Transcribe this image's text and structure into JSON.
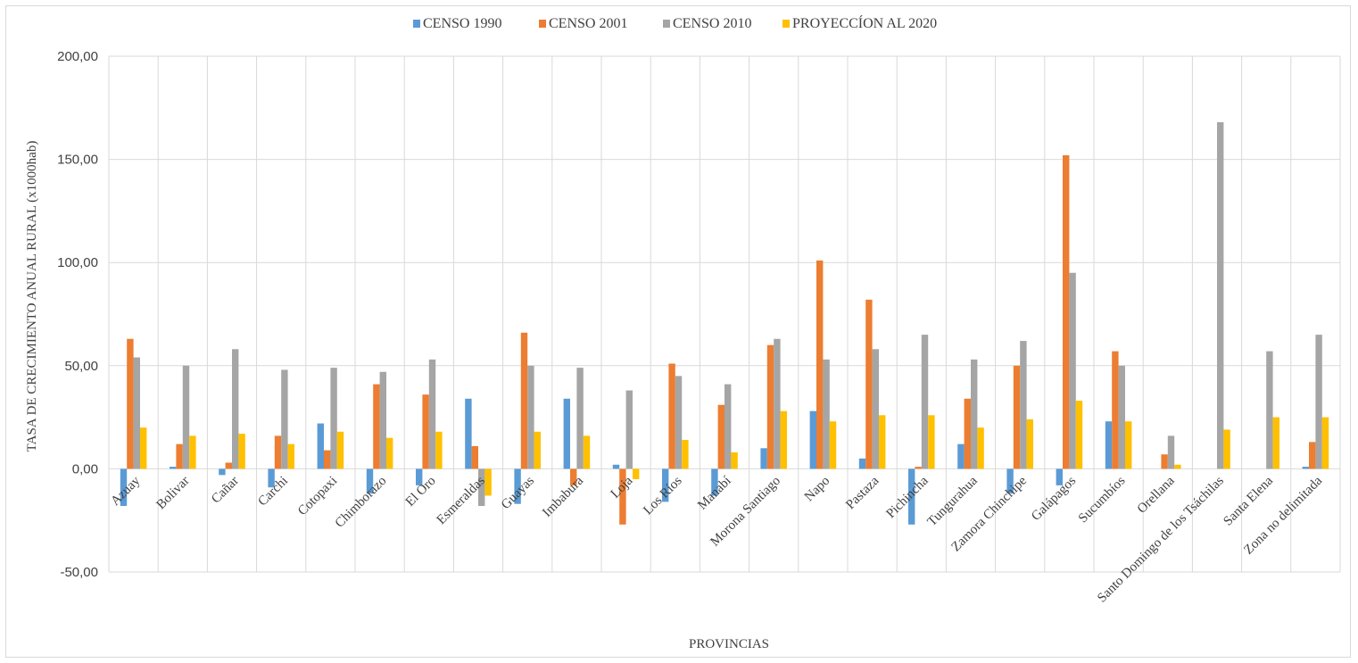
{
  "chart_data": {
    "type": "bar",
    "title": "",
    "xlabel": "PROVINCIAS",
    "ylabel": "TASA DE CRECIMIENTO ANUAL RURAL  (x1000hab)",
    "ylim": [
      -50,
      200
    ],
    "yticks": [
      "200,00",
      "150,00",
      "100,00",
      "50,00",
      "0,00",
      "-50,00"
    ],
    "ytick_values": [
      200,
      150,
      100,
      50,
      0,
      -50
    ],
    "grid": true,
    "legend_position": "top",
    "categories": [
      "Azuay",
      "Bolivar",
      "Cañar",
      "Carchi",
      "Cotopaxi",
      "Chimborazo",
      "El Oro",
      "Esmeraldas",
      "Guayas",
      "Imbabura",
      "Loja",
      "Los Ríos",
      "Manabí",
      "Morona Santiago",
      "Napo",
      "Pastaza",
      "Pichincha",
      "Tungurahua",
      "Zamora Chinchipe",
      "Galápagos",
      "Sucumbíos",
      "Orellana",
      "Santo Domingo de los Tsáchilas",
      "Santa Elena",
      "Zona no delimitada"
    ],
    "series": [
      {
        "name": "CENSO 1990",
        "color": "#5b9bd5",
        "values": [
          -18,
          1,
          -3,
          -9,
          22,
          -12,
          -8,
          34,
          -17,
          34,
          2,
          -16,
          -13,
          10,
          28,
          5,
          -27,
          12,
          -12,
          -8,
          23,
          0,
          0,
          0,
          1
        ]
      },
      {
        "name": "CENSO 2001",
        "color": "#ed7d31",
        "values": [
          63,
          12,
          3,
          16,
          9,
          41,
          36,
          11,
          66,
          -8,
          -27,
          51,
          31,
          60,
          101,
          82,
          1,
          34,
          50,
          152,
          57,
          7,
          0,
          0,
          13
        ]
      },
      {
        "name": "CENSO 2010",
        "color": "#a5a5a5",
        "values": [
          54,
          50,
          58,
          48,
          49,
          47,
          53,
          -18,
          50,
          49,
          38,
          45,
          41,
          63,
          53,
          58,
          65,
          53,
          62,
          95,
          50,
          16,
          168,
          57,
          65
        ]
      },
      {
        "name": "PROYECCÍON AL 2020",
        "color": "#ffc000",
        "values": [
          20,
          16,
          17,
          12,
          18,
          15,
          18,
          -13,
          18,
          16,
          -5,
          14,
          8,
          28,
          23,
          26,
          26,
          20,
          24,
          33,
          23,
          2,
          19,
          25,
          25
        ]
      }
    ]
  }
}
